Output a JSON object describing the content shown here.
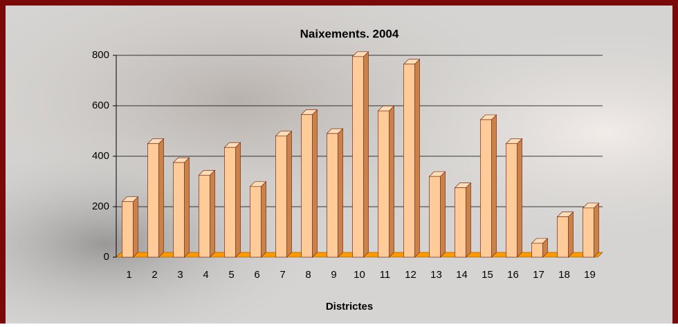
{
  "chart_data": {
    "type": "bar",
    "title": "Naixements. 2004",
    "x_label": "Districtes",
    "categories": [
      "1",
      "2",
      "3",
      "4",
      "5",
      "6",
      "7",
      "8",
      "9",
      "10",
      "11",
      "12",
      "13",
      "14",
      "15",
      "16",
      "17",
      "18",
      "19"
    ],
    "values": [
      220,
      450,
      375,
      325,
      435,
      280,
      480,
      565,
      490,
      795,
      580,
      765,
      320,
      275,
      545,
      450,
      55,
      160,
      195
    ],
    "color": "#ffcc99",
    "ylim": [
      0,
      800
    ],
    "yticks": [
      0,
      200,
      400,
      600,
      800
    ],
    "grid": true
  }
}
